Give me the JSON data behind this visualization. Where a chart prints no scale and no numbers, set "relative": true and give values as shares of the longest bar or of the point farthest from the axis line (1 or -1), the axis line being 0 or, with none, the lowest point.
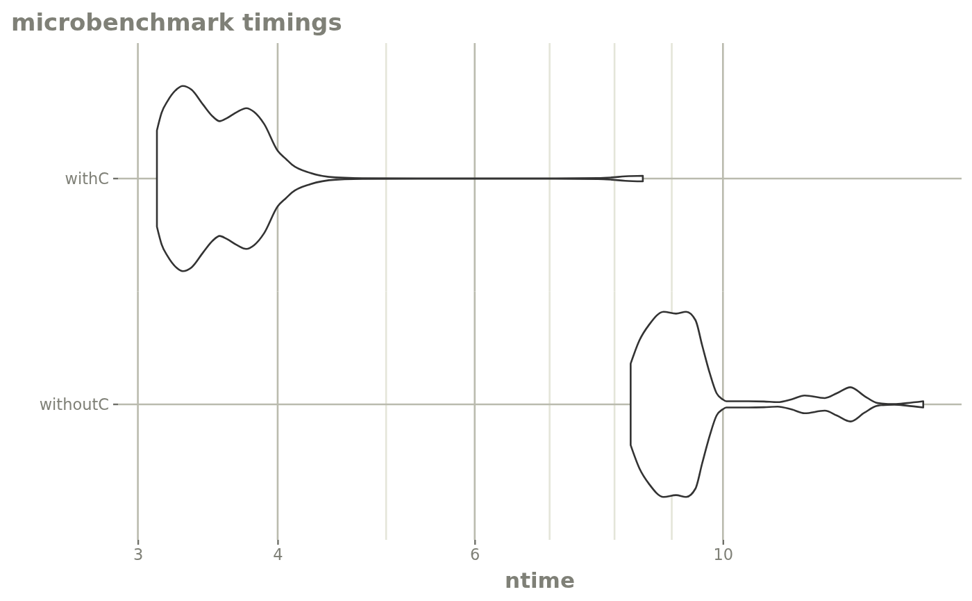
{
  "chart_data": [
    {
      "type": "area",
      "title": "microbenchmark timings",
      "relative": true,
      "log": "x",
      "xlim": [
        2.88,
        16.34
      ],
      "xticks": [
        3,
        4,
        {
          "value": 5,
          "label": null
        },
        6,
        {
          "value": 7,
          "label": null
        },
        {
          "value": 8,
          "label": null
        },
        {
          "value": 9,
          "label": null
        },
        10
      ],
      "grid": true,
      "tick_labels": false,
      "series": [
        {
          "name": "withC",
          "color": "#333333",
          "x": [
            3.12,
            3.15,
            3.19,
            3.24,
            3.29,
            3.35,
            3.43,
            3.5,
            3.55,
            3.6,
            3.68,
            3.75,
            3.81,
            3.89,
            4.0,
            4.07,
            4.12,
            4.28,
            4.51,
            4.76,
            5.33,
            6.15,
            7.09,
            7.73,
            7.95,
            8.18,
            8.48
          ],
          "values": [
            0.52,
            0.71,
            0.84,
            0.95,
            1,
            0.96,
            0.8,
            0.67,
            0.62,
            0.65,
            0.72,
            0.76,
            0.72,
            0.59,
            0.3,
            0.21,
            0.15,
            0.06,
            0.012,
            0.004,
            0.002,
            0.002,
            0.002,
            0.005,
            0.012,
            0.024,
            0.03
          ]
        }
      ]
    },
    {
      "type": "area",
      "xlabel": "ntime",
      "relative": true,
      "log": "x",
      "xlim": [
        2.88,
        16.34
      ],
      "xticks": [
        3,
        4,
        {
          "value": 5,
          "label": null
        },
        6,
        {
          "value": 7,
          "label": null
        },
        {
          "value": 8,
          "label": null
        },
        {
          "value": 9,
          "label": null
        },
        10
      ],
      "grid": true,
      "series": [
        {
          "name": "withoutC",
          "color": "#333333",
          "x": [
            8.27,
            8.42,
            8.59,
            8.85,
            9.08,
            9.27,
            9.45,
            9.58,
            9.73,
            9.87,
            9.99,
            10.07,
            10.54,
            10.88,
            11.19,
            11.52,
            11.83,
            12.33,
            12.64,
            13.0,
            13.38,
            13.75,
            14.23,
            14.6,
            15.1
          ],
          "values": [
            0.44,
            0.69,
            0.86,
            1,
            0.98,
            1,
            0.91,
            0.64,
            0.34,
            0.12,
            0.055,
            0.034,
            0.034,
            0.031,
            0.024,
            0.055,
            0.096,
            0.068,
            0.12,
            0.185,
            0.09,
            0.014,
            0.003,
            0.014,
            0.034
          ]
        }
      ]
    }
  ]
}
